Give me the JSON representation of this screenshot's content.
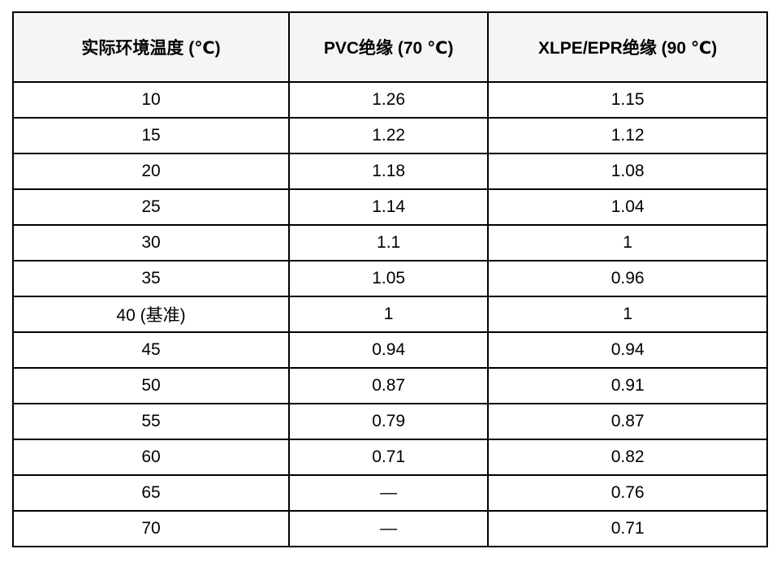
{
  "chart_data": {
    "type": "table",
    "columns": [
      "实际环境温度 (℃)",
      "PVC绝缘 (70 ℃)",
      "XLPE/EPR绝缘 (90 ℃)"
    ],
    "rows": [
      [
        "10",
        "1.26",
        "1.15"
      ],
      [
        "15",
        "1.22",
        "1.12"
      ],
      [
        "20",
        "1.18",
        "1.08"
      ],
      [
        "25",
        "1.14",
        "1.04"
      ],
      [
        "30",
        "1.1",
        "1"
      ],
      [
        "35",
        "1.05",
        "0.96"
      ],
      [
        "40 (基准)",
        "1",
        "1"
      ],
      [
        "45",
        "0.94",
        "0.94"
      ],
      [
        "50",
        "0.87",
        "0.91"
      ],
      [
        "55",
        "0.79",
        "0.87"
      ],
      [
        "60",
        "0.71",
        "0.82"
      ],
      [
        "65",
        "—",
        "0.76"
      ],
      [
        "70",
        "—",
        "0.71"
      ]
    ],
    "missing_value_symbol": "—",
    "layout": {
      "column_width_percents": [
        36.6,
        26.4,
        37.0
      ],
      "grid": "all-borders"
    }
  },
  "colors": {
    "border": "#000000",
    "header_background": "#f5f5f5",
    "cell_background": "#ffffff",
    "text": "#000000",
    "page_background": "#ffffff"
  }
}
